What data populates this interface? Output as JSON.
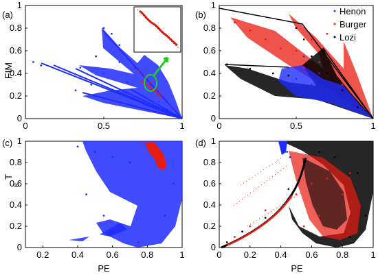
{
  "colors": {
    "henon": "#1f2cff",
    "burger": "#e81b10",
    "lozi": "#000000",
    "arrow": "#22cc22"
  },
  "chart_data": [
    {
      "panel": "(a)",
      "type": "scatter",
      "xlabel": "",
      "ylabel": "FIM",
      "xlim": [
        0,
        1
      ],
      "ylim": [
        0,
        1
      ],
      "xticks": [
        "0",
        "0.5",
        "1"
      ],
      "yticks": [
        "0",
        "0.2",
        "0.4",
        "0.6",
        "0.8",
        "1"
      ],
      "series": [
        {
          "color": "henon",
          "shape": "fan",
          "points": [
            [
              0.5,
              0.8
            ],
            [
              0.55,
              0.75
            ],
            [
              0.6,
              0.65
            ],
            [
              0.35,
              0.45
            ],
            [
              0.45,
              0.55
            ],
            [
              0.32,
              0.25
            ],
            [
              0.42,
              0.3
            ],
            [
              0.5,
              0.4
            ],
            [
              0.6,
              0.5
            ],
            [
              0.65,
              0.32
            ],
            [
              0.7,
              0.45
            ],
            [
              0.75,
              0.2
            ],
            [
              0.8,
              0.3
            ],
            [
              0.85,
              0.15
            ],
            [
              0.9,
              0.08
            ],
            [
              0.95,
              0.03
            ],
            [
              0.05,
              0.5
            ],
            [
              0.1,
              0.47
            ]
          ]
        },
        {
          "color": "burger",
          "points": [
            [
              0.72,
              0.42
            ],
            [
              0.76,
              0.38
            ],
            [
              0.8,
              0.32
            ],
            [
              0.84,
              0.26
            ],
            [
              0.86,
              0.22
            ]
          ]
        }
      ],
      "inset": true,
      "annotation": "green circle and arrow to zoomed inset"
    },
    {
      "panel": "(b)",
      "type": "scatter",
      "xlabel": "",
      "ylabel": "",
      "xlim": [
        0,
        1
      ],
      "ylim": [
        0,
        1
      ],
      "xticks": [
        "0",
        "0.5",
        "1"
      ],
      "yticks": [
        "0",
        "0.2",
        "0.4",
        "0.6",
        "0.8",
        "1"
      ],
      "legend": {
        "placement": "top-right",
        "entries": [
          "Henon",
          "Burger",
          "Lozi"
        ]
      },
      "series": [
        {
          "name": "Henon",
          "color": "henon",
          "points": [
            [
              0.45,
              0.45
            ],
            [
              0.5,
              0.35
            ],
            [
              0.6,
              0.3
            ],
            [
              0.7,
              0.2
            ],
            [
              0.55,
              0.55
            ],
            [
              0.65,
              0.4
            ]
          ]
        },
        {
          "name": "Burger",
          "color": "burger",
          "points": [
            [
              0.1,
              0.85
            ],
            [
              0.2,
              0.78
            ],
            [
              0.3,
              0.7
            ],
            [
              0.4,
              0.62
            ],
            [
              0.5,
              0.6
            ],
            [
              0.6,
              0.7
            ],
            [
              0.7,
              0.75
            ],
            [
              0.55,
              0.45
            ],
            [
              0.65,
              0.5
            ],
            [
              0.8,
              0.3
            ]
          ]
        },
        {
          "name": "Lozi",
          "color": "lozi",
          "points": [
            [
              0.05,
              0.48
            ],
            [
              0.2,
              0.44
            ],
            [
              0.35,
              0.4
            ],
            [
              0.45,
              0.38
            ],
            [
              0.5,
              0.8
            ],
            [
              0.55,
              0.7
            ],
            [
              0.6,
              0.55
            ],
            [
              0.7,
              0.4
            ],
            [
              0.8,
              0.25
            ],
            [
              0.9,
              0.1
            ]
          ]
        }
      ]
    },
    {
      "panel": "(c)",
      "type": "scatter",
      "xlabel": "PE",
      "ylabel": "T_ρ",
      "xlim": [
        0.1,
        1
      ],
      "ylim": [
        0,
        1
      ],
      "xticks": [
        "0.2",
        "0.4",
        "0.6",
        "0.8",
        "1"
      ],
      "yticks": [
        "0",
        "0.2",
        "0.4",
        "0.6",
        "0.8",
        "1"
      ],
      "series": [
        {
          "color": "henon",
          "shape": "crescent",
          "points": [
            [
              0.4,
              0.95
            ],
            [
              0.5,
              0.9
            ],
            [
              0.6,
              0.85
            ],
            [
              0.7,
              0.8
            ],
            [
              0.45,
              0.5
            ],
            [
              0.55,
              0.3
            ],
            [
              0.6,
              0.15
            ],
            [
              0.75,
              0.05
            ],
            [
              0.9,
              0.3
            ],
            [
              0.95,
              0.6
            ]
          ]
        },
        {
          "color": "burger",
          "points": [
            [
              0.78,
              0.98
            ],
            [
              0.82,
              0.92
            ],
            [
              0.86,
              0.86
            ],
            [
              0.88,
              0.8
            ],
            [
              0.9,
              0.75
            ]
          ]
        }
      ]
    },
    {
      "panel": "(d)",
      "type": "scatter",
      "xlabel": "PE",
      "ylabel": "",
      "xlim": [
        0,
        1
      ],
      "ylim": [
        0,
        1
      ],
      "xticks": [
        "0",
        "0.2",
        "0.4",
        "0.6",
        "0.8",
        "1"
      ],
      "yticks": [
        "0",
        "0.2",
        "0.4",
        "0.6",
        "0.8",
        "1"
      ],
      "series": [
        {
          "name": "Henon",
          "color": "henon",
          "points": [
            [
              0.42,
              0.95
            ],
            [
              0.44,
              0.9
            ],
            [
              0.46,
              0.85
            ]
          ]
        },
        {
          "name": "Burger",
          "color": "burger",
          "points": [
            [
              0.1,
              0.1
            ],
            [
              0.2,
              0.2
            ],
            [
              0.3,
              0.35
            ],
            [
              0.5,
              0.5
            ],
            [
              0.6,
              0.6
            ],
            [
              0.7,
              0.65
            ],
            [
              0.8,
              0.5
            ],
            [
              0.85,
              0.7
            ],
            [
              0.65,
              0.3
            ],
            [
              0.55,
              0.2
            ]
          ]
        },
        {
          "name": "Lozi",
          "color": "lozi",
          "points": [
            [
              0.05,
              0.05
            ],
            [
              0.15,
              0.15
            ],
            [
              0.3,
              0.28
            ],
            [
              0.45,
              0.55
            ],
            [
              0.55,
              0.8
            ],
            [
              0.65,
              0.9
            ],
            [
              0.75,
              0.85
            ],
            [
              0.9,
              0.7
            ],
            [
              0.95,
              0.3
            ],
            [
              0.85,
              0.1
            ]
          ]
        }
      ]
    }
  ]
}
